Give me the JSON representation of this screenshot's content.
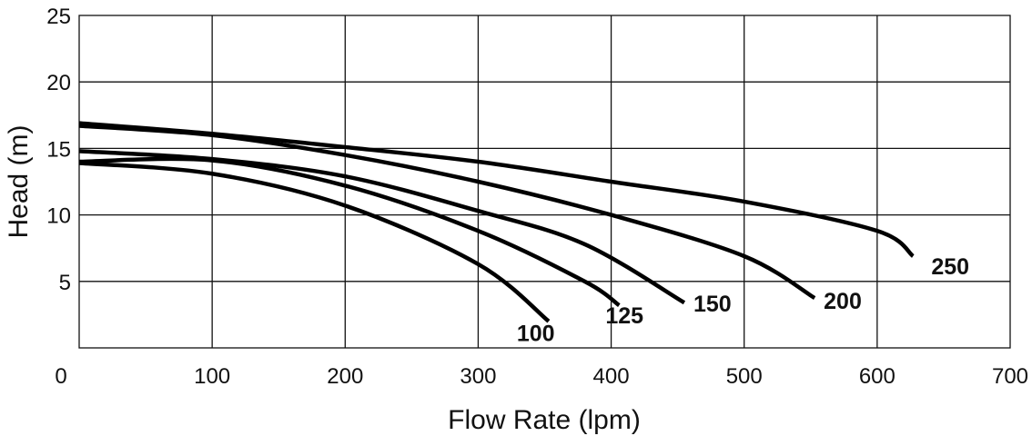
{
  "chart_data": {
    "type": "line",
    "title": "",
    "xlabel": "Flow Rate (lpm)",
    "ylabel": "Head (m)",
    "xlim": [
      0,
      700
    ],
    "ylim": [
      0,
      25
    ],
    "x_ticks": [
      "0",
      "100",
      "200",
      "300",
      "400",
      "500",
      "600",
      "700"
    ],
    "y_ticks": [
      "5",
      "10",
      "15",
      "20",
      "25"
    ],
    "grid": true,
    "legend": "inline labels at curve ends",
    "series": [
      {
        "name": "100",
        "label": "100",
        "x": [
          0,
          100,
          200,
          300,
          353
        ],
        "y": [
          13.9,
          13.1,
          10.7,
          6.3,
          2.0
        ]
      },
      {
        "name": "125",
        "label": "125",
        "x": [
          0,
          100,
          200,
          300,
          380,
          406
        ],
        "y": [
          14.0,
          14.1,
          12.2,
          8.8,
          5.0,
          3.2
        ]
      },
      {
        "name": "150",
        "label": "150",
        "x": [
          0,
          100,
          200,
          300,
          380,
          455
        ],
        "y": [
          14.8,
          14.2,
          12.9,
          10.3,
          7.8,
          3.4
        ]
      },
      {
        "name": "200",
        "label": "200",
        "x": [
          0,
          100,
          200,
          300,
          400,
          500,
          553
        ],
        "y": [
          16.7,
          16.0,
          14.5,
          12.5,
          10.0,
          6.9,
          3.75
        ]
      },
      {
        "name": "250",
        "label": "250",
        "x": [
          0,
          100,
          200,
          300,
          400,
          500,
          600,
          627
        ],
        "y": [
          16.9,
          16.1,
          15.1,
          14.0,
          12.5,
          11.0,
          8.8,
          6.9
        ]
      }
    ]
  }
}
